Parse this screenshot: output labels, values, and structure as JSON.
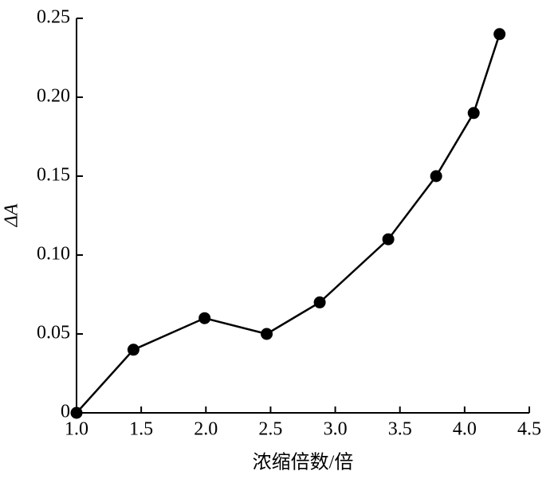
{
  "chart_data": {
    "type": "line",
    "x_label": "浓缩倍数/倍",
    "y_label": "ΔA",
    "x": [
      1.0,
      1.44,
      1.99,
      2.47,
      2.88,
      3.41,
      3.78,
      4.07,
      4.27
    ],
    "series": [
      {
        "color": "#000000",
        "values": [
          0,
          0.04,
          0.06,
          0.05,
          0.07,
          0.11,
          0.15,
          0.19,
          0.24
        ]
      }
    ],
    "xlim": [
      1.0,
      4.5
    ],
    "xticks": [
      {
        "value": 1,
        "label": "1.0"
      },
      1.5,
      {
        "value": 2,
        "label": "2.0"
      },
      2.5,
      {
        "value": 3,
        "label": "3.0"
      },
      3.5,
      {
        "value": 4,
        "label": "4.0"
      },
      4.5
    ],
    "ylim": [
      0,
      0.25
    ],
    "yticks": [
      0,
      0.05,
      {
        "value": 0.1,
        "label": "0.10"
      },
      0.15,
      {
        "value": 0.2,
        "label": "0.20"
      },
      0.25
    ],
    "grid": false
  }
}
